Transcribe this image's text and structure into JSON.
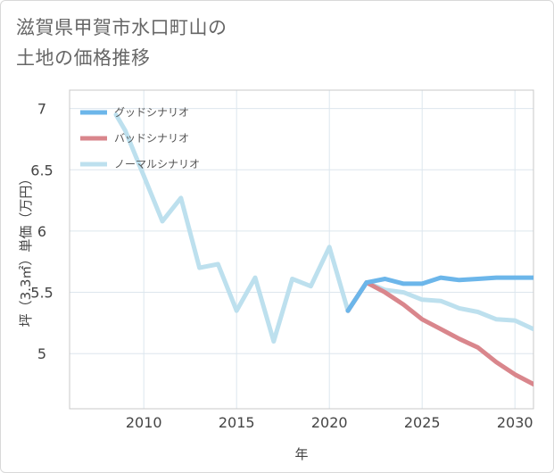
{
  "chart_data": {
    "type": "line",
    "title_lines": [
      "滋賀県甲賀市水口町山の",
      "土地の価格推移"
    ],
    "xlabel": "年",
    "ylabel": "坪（3.3㎡）単価（万円）",
    "xlim": [
      2006,
      2031
    ],
    "ylim": [
      4.55,
      7.15
    ],
    "x_ticks": [
      2010,
      2015,
      2020,
      2025,
      2030
    ],
    "y_ticks": [
      5,
      5.5,
      6,
      6.5,
      7
    ],
    "grid": true,
    "legend_position": "top-left",
    "series": [
      {
        "name": "グッドシナリオ",
        "color": "#6cb6ea",
        "x": [
          2021,
          2022,
          2023,
          2024,
          2025,
          2026,
          2027,
          2028,
          2029,
          2030,
          2031
        ],
        "y": [
          5.35,
          5.58,
          5.61,
          5.57,
          5.57,
          5.62,
          5.6,
          5.61,
          5.62,
          5.62,
          5.62
        ]
      },
      {
        "name": "バッドシナリオ",
        "color": "#d9868c",
        "x": [
          2021,
          2022,
          2023,
          2024,
          2025,
          2026,
          2027,
          2028,
          2029,
          2030,
          2031
        ],
        "y": [
          5.35,
          5.58,
          5.5,
          5.4,
          5.28,
          5.2,
          5.12,
          5.05,
          4.93,
          4.83,
          4.75
        ]
      },
      {
        "name": "ノーマルシナリオ",
        "color": "#bde0ee",
        "x": [
          2008.5,
          2009,
          2010,
          2011,
          2012,
          2013,
          2014,
          2015,
          2016,
          2017,
          2018,
          2019,
          2020,
          2021,
          2022,
          2023,
          2024,
          2025,
          2026,
          2027,
          2028,
          2029,
          2030,
          2031
        ],
        "y": [
          6.95,
          6.82,
          6.45,
          6.08,
          6.27,
          5.7,
          5.73,
          5.35,
          5.62,
          5.1,
          5.61,
          5.55,
          5.87,
          5.35,
          5.58,
          5.52,
          5.5,
          5.44,
          5.43,
          5.37,
          5.34,
          5.28,
          5.27,
          5.2
        ]
      }
    ]
  }
}
